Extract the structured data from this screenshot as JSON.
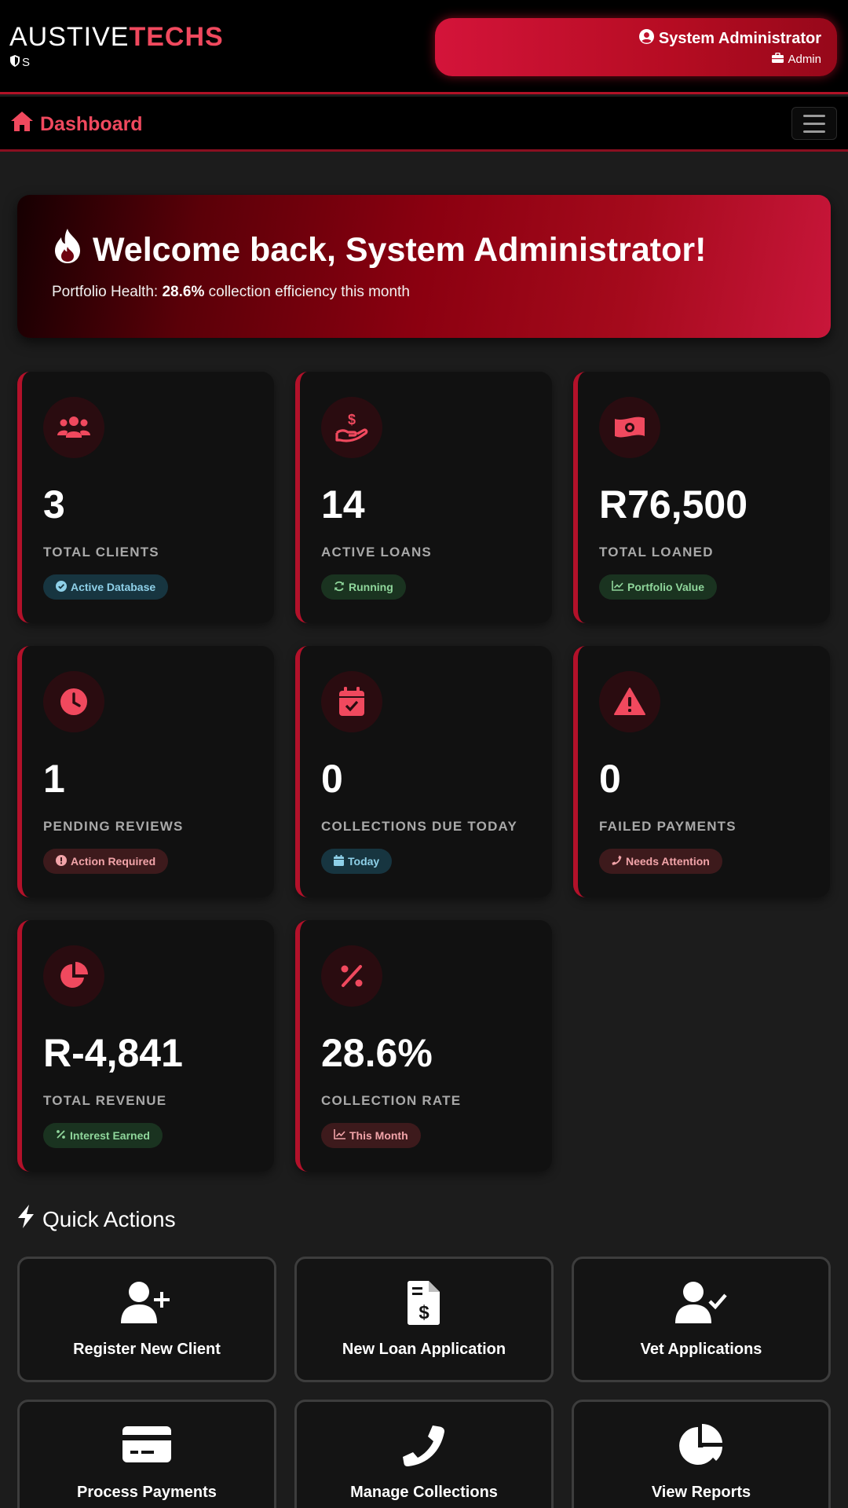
{
  "brand": {
    "name_part1": "AUSTIVE",
    "name_part2": "TECHS",
    "sub": "S"
  },
  "user": {
    "name": "System Administrator",
    "role": "Admin"
  },
  "nav": {
    "title": "Dashboard"
  },
  "welcome": {
    "title": "Welcome back, System Administrator!",
    "sub_prefix": "Portfolio Health: ",
    "sub_value": "28.6%",
    "sub_suffix": " collection efficiency this month"
  },
  "stats": [
    {
      "value": "3",
      "label": "TOTAL CLIENTS",
      "badge": "Active Database",
      "icon": "users-icon",
      "badge_color": "blue"
    },
    {
      "value": "14",
      "label": "ACTIVE LOANS",
      "badge": "Running",
      "icon": "hand-dollar-icon",
      "badge_color": "green"
    },
    {
      "value": "R76,500",
      "label": "TOTAL LOANED",
      "badge": "Portfolio Value",
      "icon": "money-bill-icon",
      "badge_color": "green"
    },
    {
      "value": "1",
      "label": "PENDING REVIEWS",
      "badge": "Action Required",
      "icon": "clock-icon",
      "badge_color": "red"
    },
    {
      "value": "0",
      "label": "COLLECTIONS DUE TODAY",
      "badge": "Today",
      "icon": "calendar-check-icon",
      "badge_color": "blue"
    },
    {
      "value": "0",
      "label": "FAILED PAYMENTS",
      "badge": "Needs Attention",
      "icon": "warning-icon",
      "badge_color": "red"
    },
    {
      "value": "R-4,841",
      "label": "TOTAL REVENUE",
      "badge": "Interest Earned",
      "icon": "pie-chart-icon",
      "badge_color": "green"
    },
    {
      "value": "28.6%",
      "label": "COLLECTION RATE",
      "badge": "This Month",
      "icon": "percent-icon",
      "badge_color": "red"
    }
  ],
  "quick_actions": {
    "title": "Quick Actions",
    "items": [
      {
        "label": "Register New Client",
        "icon": "user-plus-icon"
      },
      {
        "label": "New Loan Application",
        "icon": "file-invoice-dollar-icon"
      },
      {
        "label": "Vet Applications",
        "icon": "user-check-icon"
      },
      {
        "label": "Process Payments",
        "icon": "credit-card-icon"
      },
      {
        "label": "Manage Collections",
        "icon": "phone-icon"
      },
      {
        "label": "View Reports",
        "icon": "chart-pie-icon"
      }
    ]
  },
  "colors": {
    "accent": "#f0495e",
    "card_bg": "#111111",
    "border_red": "#b3112a"
  }
}
